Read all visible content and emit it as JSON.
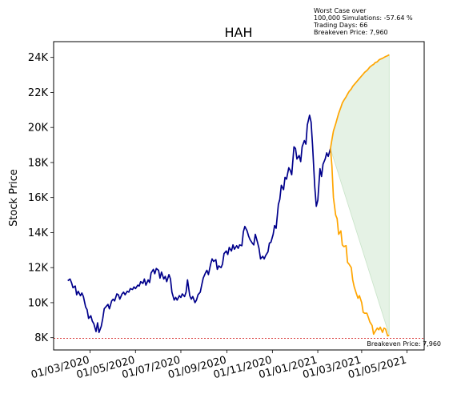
{
  "chart_data": {
    "type": "line",
    "title": "HAH",
    "xlabel": "",
    "ylabel": "Stock Price",
    "ylim": [
      7300,
      24900
    ],
    "xlim": [
      "2020-01-12",
      "2021-05-24"
    ],
    "y_ticks": [
      {
        "value": 8000,
        "label": "8K"
      },
      {
        "value": 10000,
        "label": "10K"
      },
      {
        "value": 12000,
        "label": "12K"
      },
      {
        "value": 14000,
        "label": "14K"
      },
      {
        "value": 16000,
        "label": "16K"
      },
      {
        "value": 18000,
        "label": "18K"
      },
      {
        "value": 20000,
        "label": "20K"
      },
      {
        "value": 22000,
        "label": "22K"
      },
      {
        "value": 24000,
        "label": "24K"
      }
    ],
    "x_ticks": [
      {
        "value": "2020-03-01",
        "label": "01/03/2020"
      },
      {
        "value": "2020-05-01",
        "label": "01/05/2020"
      },
      {
        "value": "2020-07-01",
        "label": "01/07/2020"
      },
      {
        "value": "2020-09-01",
        "label": "01/09/2020"
      },
      {
        "value": "2020-11-01",
        "label": "01/11/2020"
      },
      {
        "value": "2021-01-01",
        "label": "01/01/2021"
      },
      {
        "value": "2021-03-01",
        "label": "01/03/2021"
      },
      {
        "value": "2021-05-01",
        "label": "01/05/2021"
      }
    ],
    "breakeven": {
      "value": 7960,
      "label": "Breakeven Price: 7,960",
      "color": "#d62728"
    },
    "annotation": [
      "Worst Case over",
      "100,000 Simulations: -57.64 %",
      "Trading Days: 66",
      "Breakeven Price: 7,960"
    ],
    "grid": false,
    "series": [
      {
        "color": "#00008b",
        "points": [
          [
            "2020-01-31",
            11250
          ],
          [
            "2020-02-03",
            11350
          ],
          [
            "2020-02-05",
            11150
          ],
          [
            "2020-02-07",
            10850
          ],
          [
            "2020-02-10",
            10950
          ],
          [
            "2020-02-12",
            10450
          ],
          [
            "2020-02-14",
            10650
          ],
          [
            "2020-02-17",
            10400
          ],
          [
            "2020-02-19",
            10550
          ],
          [
            "2020-02-21",
            10350
          ],
          [
            "2020-02-24",
            9750
          ],
          [
            "2020-02-26",
            9600
          ],
          [
            "2020-02-28",
            9100
          ],
          [
            "2020-03-02",
            9250
          ],
          [
            "2020-03-04",
            8950
          ],
          [
            "2020-03-06",
            8800
          ],
          [
            "2020-03-09",
            8350
          ],
          [
            "2020-03-11",
            8850
          ],
          [
            "2020-03-13",
            8300
          ],
          [
            "2020-03-16",
            8650
          ],
          [
            "2020-03-18",
            9100
          ],
          [
            "2020-03-20",
            9650
          ],
          [
            "2020-03-23",
            9800
          ],
          [
            "2020-03-25",
            9900
          ],
          [
            "2020-03-27",
            9650
          ],
          [
            "2020-03-30",
            10100
          ],
          [
            "2020-04-01",
            10200
          ],
          [
            "2020-04-03",
            10100
          ],
          [
            "2020-04-06",
            10500
          ],
          [
            "2020-04-08",
            10450
          ],
          [
            "2020-04-10",
            10200
          ],
          [
            "2020-04-13",
            10500
          ],
          [
            "2020-04-15",
            10600
          ],
          [
            "2020-04-17",
            10450
          ],
          [
            "2020-04-20",
            10650
          ],
          [
            "2020-04-22",
            10600
          ],
          [
            "2020-04-24",
            10800
          ],
          [
            "2020-04-27",
            10750
          ],
          [
            "2020-04-29",
            10900
          ],
          [
            "2020-05-01",
            10800
          ],
          [
            "2020-05-04",
            11000
          ],
          [
            "2020-05-06",
            10950
          ],
          [
            "2020-05-08",
            11200
          ],
          [
            "2020-05-11",
            11100
          ],
          [
            "2020-05-13",
            11350
          ],
          [
            "2020-05-15",
            11000
          ],
          [
            "2020-05-18",
            11300
          ],
          [
            "2020-05-20",
            11150
          ],
          [
            "2020-05-22",
            11700
          ],
          [
            "2020-05-25",
            11900
          ],
          [
            "2020-05-27",
            11650
          ],
          [
            "2020-05-29",
            11950
          ],
          [
            "2020-06-01",
            11850
          ],
          [
            "2020-06-03",
            11400
          ],
          [
            "2020-06-05",
            11750
          ],
          [
            "2020-06-08",
            11350
          ],
          [
            "2020-06-10",
            11500
          ],
          [
            "2020-06-12",
            11200
          ],
          [
            "2020-06-15",
            11600
          ],
          [
            "2020-06-17",
            11350
          ],
          [
            "2020-06-19",
            10600
          ],
          [
            "2020-06-22",
            10150
          ],
          [
            "2020-06-24",
            10300
          ],
          [
            "2020-06-26",
            10150
          ],
          [
            "2020-06-29",
            10400
          ],
          [
            "2020-07-01",
            10300
          ],
          [
            "2020-07-03",
            10500
          ],
          [
            "2020-07-06",
            10350
          ],
          [
            "2020-07-08",
            10600
          ],
          [
            "2020-07-10",
            11300
          ],
          [
            "2020-07-13",
            10400
          ],
          [
            "2020-07-15",
            10200
          ],
          [
            "2020-07-17",
            10350
          ],
          [
            "2020-07-20",
            10000
          ],
          [
            "2020-07-22",
            10150
          ],
          [
            "2020-07-24",
            10450
          ],
          [
            "2020-07-27",
            10600
          ],
          [
            "2020-07-29",
            11000
          ],
          [
            "2020-07-31",
            11400
          ],
          [
            "2020-08-03",
            11700
          ],
          [
            "2020-08-05",
            11850
          ],
          [
            "2020-08-07",
            11600
          ],
          [
            "2020-08-10",
            12200
          ],
          [
            "2020-08-12",
            12500
          ],
          [
            "2020-08-14",
            12350
          ],
          [
            "2020-08-17",
            12450
          ],
          [
            "2020-08-19",
            11900
          ],
          [
            "2020-08-21",
            12100
          ],
          [
            "2020-08-24",
            12000
          ],
          [
            "2020-08-26",
            12200
          ],
          [
            "2020-08-28",
            12800
          ],
          [
            "2020-08-31",
            12950
          ],
          [
            "2020-09-02",
            12750
          ],
          [
            "2020-09-04",
            13150
          ],
          [
            "2020-09-07",
            12950
          ],
          [
            "2020-09-09",
            13300
          ],
          [
            "2020-09-11",
            13050
          ],
          [
            "2020-09-14",
            13250
          ],
          [
            "2020-09-16",
            13100
          ],
          [
            "2020-09-18",
            13300
          ],
          [
            "2020-09-21",
            13250
          ],
          [
            "2020-09-23",
            14050
          ],
          [
            "2020-09-25",
            14350
          ],
          [
            "2020-09-28",
            14100
          ],
          [
            "2020-09-30",
            13800
          ],
          [
            "2020-10-02",
            13600
          ],
          [
            "2020-10-05",
            13400
          ],
          [
            "2020-10-07",
            13300
          ],
          [
            "2020-10-09",
            13900
          ],
          [
            "2020-10-12",
            13450
          ],
          [
            "2020-10-14",
            13100
          ],
          [
            "2020-10-16",
            12500
          ],
          [
            "2020-10-19",
            12650
          ],
          [
            "2020-10-21",
            12500
          ],
          [
            "2020-10-23",
            12700
          ],
          [
            "2020-10-26",
            12900
          ],
          [
            "2020-10-28",
            13400
          ],
          [
            "2020-10-30",
            13450
          ],
          [
            "2020-11-02",
            13900
          ],
          [
            "2020-11-04",
            14400
          ],
          [
            "2020-11-06",
            14250
          ],
          [
            "2020-11-09",
            15600
          ],
          [
            "2020-11-11",
            15900
          ],
          [
            "2020-11-13",
            16700
          ],
          [
            "2020-11-16",
            16450
          ],
          [
            "2020-11-18",
            17150
          ],
          [
            "2020-11-20",
            17050
          ],
          [
            "2020-11-23",
            17700
          ],
          [
            "2020-11-25",
            17550
          ],
          [
            "2020-11-27",
            17300
          ],
          [
            "2020-11-30",
            18900
          ],
          [
            "2020-12-02",
            18800
          ],
          [
            "2020-12-04",
            18200
          ],
          [
            "2020-12-07",
            18400
          ],
          [
            "2020-12-09",
            18050
          ],
          [
            "2020-12-11",
            18900
          ],
          [
            "2020-12-14",
            19250
          ],
          [
            "2020-12-16",
            19050
          ],
          [
            "2020-12-18",
            20150
          ],
          [
            "2020-12-21",
            20700
          ],
          [
            "2020-12-23",
            20300
          ],
          [
            "2020-12-25",
            19000
          ],
          [
            "2020-12-28",
            16600
          ],
          [
            "2020-12-30",
            15500
          ],
          [
            "2021-01-01",
            15850
          ],
          [
            "2021-01-04",
            17650
          ],
          [
            "2021-01-06",
            17200
          ],
          [
            "2021-01-08",
            17900
          ],
          [
            "2021-01-11",
            18200
          ],
          [
            "2021-01-13",
            18550
          ],
          [
            "2021-01-15",
            18350
          ],
          [
            "2021-01-18",
            18800
          ]
        ]
      },
      {
        "color": "#ffa500",
        "points": [
          [
            "2021-01-18",
            18800
          ],
          [
            "2021-01-20",
            19300
          ],
          [
            "2021-01-22",
            19800
          ],
          [
            "2021-01-25",
            20200
          ],
          [
            "2021-01-27",
            20500
          ],
          [
            "2021-01-29",
            20800
          ],
          [
            "2021-02-01",
            21150
          ],
          [
            "2021-02-03",
            21400
          ],
          [
            "2021-02-05",
            21550
          ],
          [
            "2021-02-08",
            21750
          ],
          [
            "2021-02-10",
            21900
          ],
          [
            "2021-02-12",
            22050
          ],
          [
            "2021-02-15",
            22200
          ],
          [
            "2021-02-17",
            22350
          ],
          [
            "2021-02-19",
            22450
          ],
          [
            "2021-02-22",
            22600
          ],
          [
            "2021-02-24",
            22700
          ],
          [
            "2021-02-26",
            22800
          ],
          [
            "2021-03-01",
            22950
          ],
          [
            "2021-03-03",
            23050
          ],
          [
            "2021-03-05",
            23150
          ],
          [
            "2021-03-08",
            23250
          ],
          [
            "2021-03-10",
            23350
          ],
          [
            "2021-03-12",
            23450
          ],
          [
            "2021-03-15",
            23550
          ],
          [
            "2021-03-17",
            23600
          ],
          [
            "2021-03-19",
            23700
          ],
          [
            "2021-03-22",
            23750
          ],
          [
            "2021-03-24",
            23850
          ],
          [
            "2021-03-26",
            23900
          ],
          [
            "2021-03-29",
            23950
          ],
          [
            "2021-03-31",
            24000
          ],
          [
            "2021-04-02",
            24050
          ],
          [
            "2021-04-05",
            24100
          ],
          [
            "2021-04-07",
            24150
          ]
        ]
      },
      {
        "color": "#ffa500",
        "points": [
          [
            "2021-01-18",
            18800
          ],
          [
            "2021-01-20",
            17800
          ],
          [
            "2021-01-22",
            16000
          ],
          [
            "2021-01-25",
            15000
          ],
          [
            "2021-01-27",
            14800
          ],
          [
            "2021-01-29",
            13900
          ],
          [
            "2021-02-01",
            14100
          ],
          [
            "2021-02-03",
            13300
          ],
          [
            "2021-02-05",
            13200
          ],
          [
            "2021-02-08",
            13250
          ],
          [
            "2021-02-10",
            12300
          ],
          [
            "2021-02-12",
            12200
          ],
          [
            "2021-02-15",
            12000
          ],
          [
            "2021-02-17",
            11300
          ],
          [
            "2021-02-19",
            10900
          ],
          [
            "2021-02-22",
            10500
          ],
          [
            "2021-02-24",
            10250
          ],
          [
            "2021-02-26",
            10400
          ],
          [
            "2021-03-01",
            10000
          ],
          [
            "2021-03-03",
            9450
          ],
          [
            "2021-03-05",
            9400
          ],
          [
            "2021-03-08",
            9400
          ],
          [
            "2021-03-10",
            9150
          ],
          [
            "2021-03-12",
            8900
          ],
          [
            "2021-03-15",
            8700
          ],
          [
            "2021-03-17",
            8200
          ],
          [
            "2021-03-19",
            8350
          ],
          [
            "2021-03-22",
            8550
          ],
          [
            "2021-03-24",
            8450
          ],
          [
            "2021-03-26",
            8600
          ],
          [
            "2021-03-29",
            8300
          ],
          [
            "2021-03-31",
            8550
          ],
          [
            "2021-04-02",
            8500
          ],
          [
            "2021-04-05",
            8100
          ],
          [
            "2021-04-07",
            8150
          ]
        ]
      }
    ],
    "band": {
      "color": "#e5f2e5",
      "between_series": [
        1,
        2
      ]
    }
  }
}
